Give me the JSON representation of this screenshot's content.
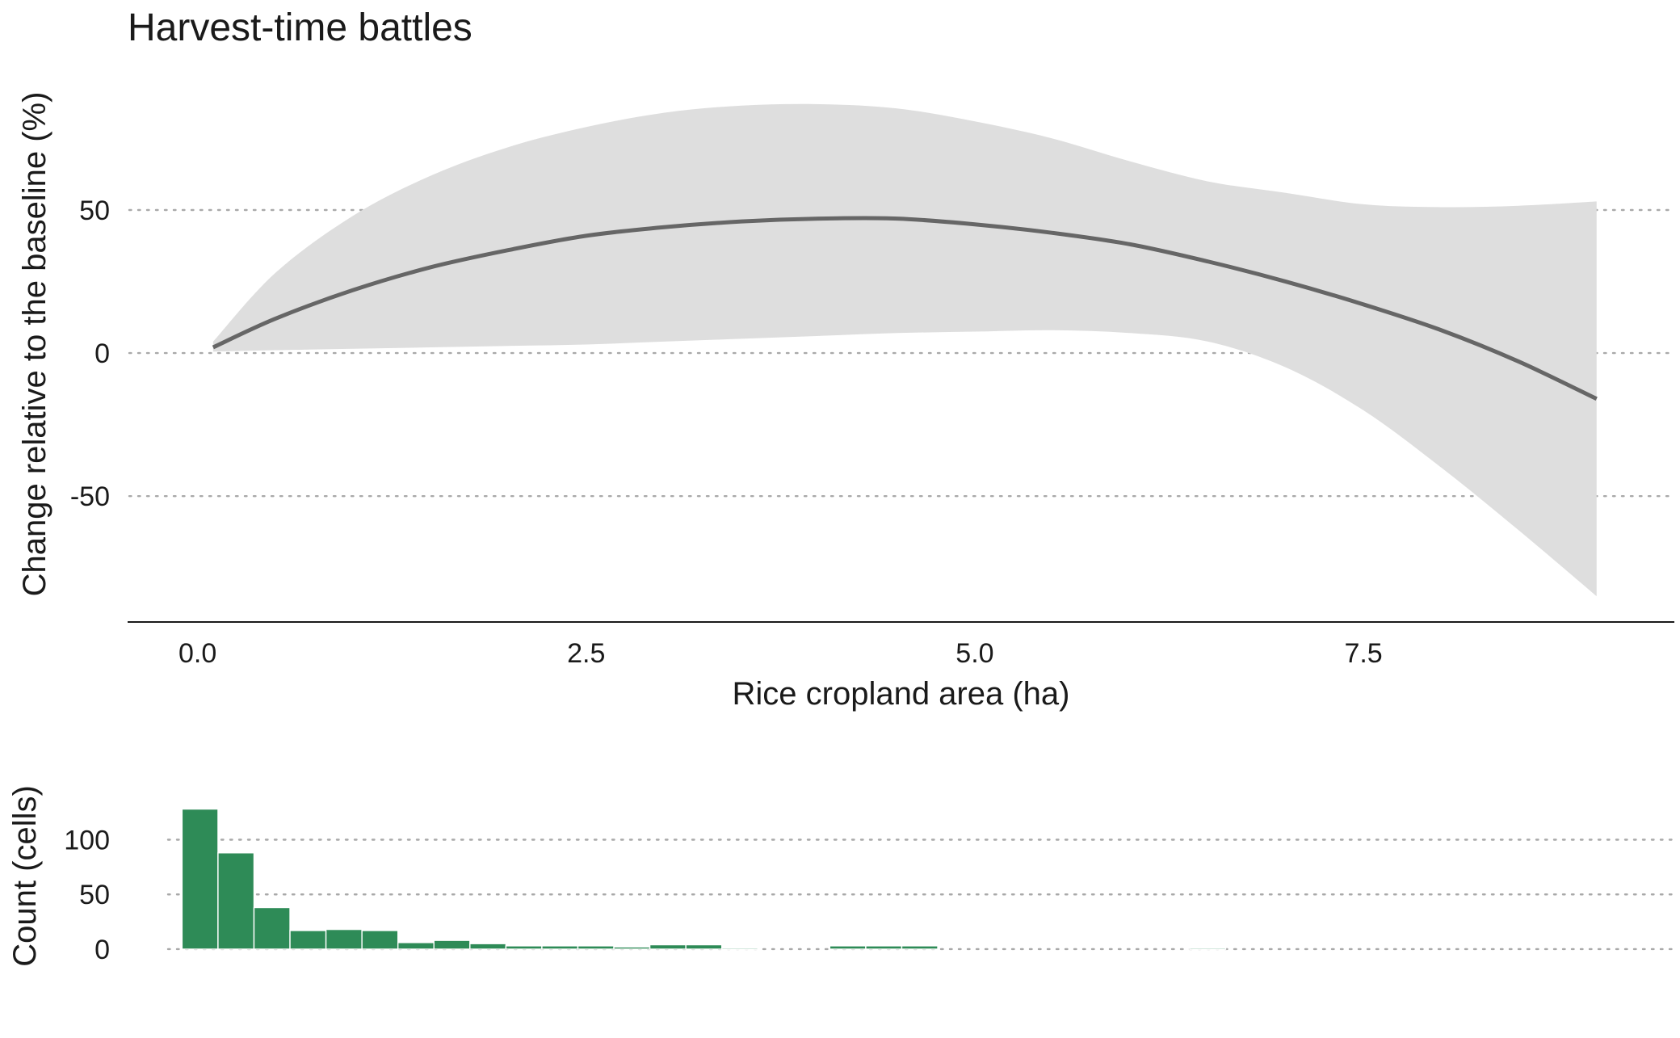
{
  "title": "Harvest-time battles",
  "chart_data": [
    {
      "type": "line",
      "title": "Harvest-time battles",
      "xlabel": "Rice cropland area (ha)",
      "ylabel": "Change relative to the baseline (%)",
      "xlim": [
        -0.45,
        9.5
      ],
      "ylim": [
        -94,
        98
      ],
      "x_ticks": [
        {
          "value": 0.0,
          "label": "0.0"
        },
        {
          "value": 2.5,
          "label": "2.5"
        },
        {
          "value": 5.0,
          "label": "5.0"
        },
        {
          "value": 7.5,
          "label": "7.5"
        }
      ],
      "y_ticks": [
        {
          "value": 50,
          "label": "50"
        },
        {
          "value": 0,
          "label": "0"
        },
        {
          "value": -50,
          "label": "-50"
        }
      ],
      "grid": "horizontal dotted",
      "line_color": "#666666",
      "ribbon_color": "#dedede",
      "x": [
        0.1,
        0.5,
        1.0,
        1.5,
        2.0,
        2.5,
        3.0,
        3.5,
        4.0,
        4.5,
        5.0,
        5.5,
        6.0,
        6.5,
        7.0,
        7.5,
        8.0,
        8.5,
        9.0
      ],
      "y": [
        2,
        12,
        22,
        30,
        36,
        41,
        44,
        46,
        47,
        47,
        45,
        42,
        38,
        32,
        25,
        17,
        8,
        -3,
        -16
      ],
      "lower": [
        0.5,
        1,
        1.5,
        2,
        2.5,
        3,
        4,
        5,
        6,
        7,
        7.5,
        8,
        7,
        4,
        -5,
        -20,
        -40,
        -62,
        -85
      ],
      "upper": [
        4,
        28,
        48,
        62,
        72,
        79,
        84,
        86.5,
        87,
        85.5,
        81,
        75,
        67,
        60,
        56,
        52,
        51,
        51.5,
        53
      ]
    },
    {
      "type": "bar",
      "title": "",
      "xlabel": "",
      "ylabel": "Count (cells)",
      "ylim": [
        -48,
        155
      ],
      "y_ticks": [
        {
          "value": 100,
          "label": "100"
        },
        {
          "value": 50,
          "label": "50"
        },
        {
          "value": 0,
          "label": "0"
        }
      ],
      "grid": "horizontal dotted",
      "bar_color": "#2e8b57",
      "bin_start": -0.1,
      "bin_width": 0.2315,
      "counts": [
        128,
        88,
        38,
        17,
        18,
        17,
        6,
        8,
        5,
        3,
        3,
        3,
        2,
        4,
        4,
        1,
        0,
        0,
        3,
        3,
        3,
        0,
        0,
        0,
        0,
        0,
        0,
        0,
        1,
        0,
        0,
        0,
        0,
        0,
        0,
        0,
        0,
        0,
        0,
        0
      ]
    }
  ]
}
